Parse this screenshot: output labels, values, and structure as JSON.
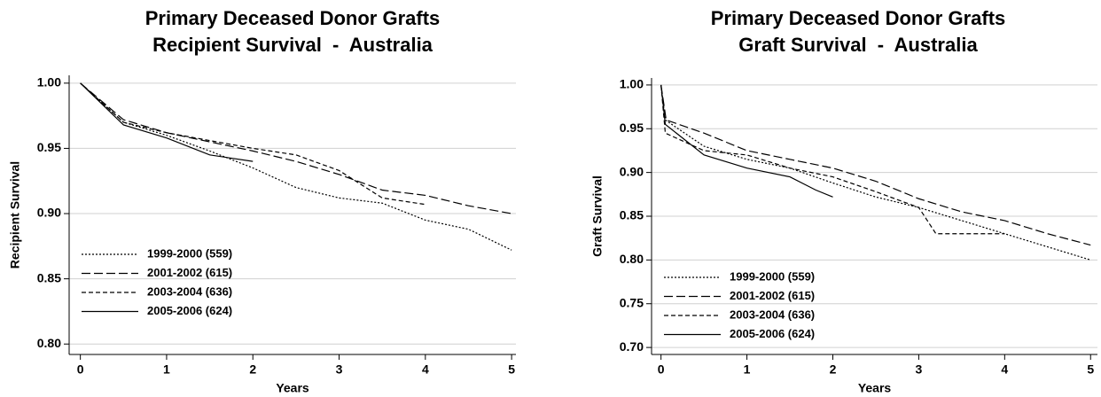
{
  "chart_data": [
    {
      "type": "line",
      "title": [
        "Primary Deceased Donor Grafts",
        "Recipient Survival  -  Australia"
      ],
      "x_label": "Years",
      "y_label": "Recipient Survival",
      "xlim": [
        -0.13,
        5.05
      ],
      "xticks": [
        0,
        1,
        2,
        3,
        4,
        5
      ],
      "ylim": [
        0.792,
        1.006
      ],
      "yticks": [
        {
          "value": 0.8,
          "label": "0.80"
        },
        0.85,
        {
          "value": 0.9,
          "label": "0.90"
        },
        0.95,
        {
          "value": 1,
          "label": "1.00"
        }
      ],
      "grid": true,
      "legend": "lower left",
      "series": [
        {
          "name": "1999-2000 (559)",
          "color": "#000000",
          "dash": "2,2",
          "x": [
            0,
            0.5,
            1,
            1.5,
            2,
            2.5,
            3,
            3.5,
            4,
            4.5,
            5
          ],
          "values": [
            1.0,
            0.97,
            0.96,
            0.948,
            0.935,
            0.92,
            0.912,
            0.908,
            0.895,
            0.888,
            0.872
          ]
        },
        {
          "name": "2001-2002 (615)",
          "color": "#000000",
          "dash": "10,4",
          "x": [
            0,
            0.5,
            1,
            1.5,
            2,
            2.5,
            3,
            3.5,
            4,
            4.5,
            5
          ],
          "values": [
            1.0,
            0.972,
            0.962,
            0.955,
            0.948,
            0.94,
            0.93,
            0.918,
            0.914,
            0.906,
            0.9
          ]
        },
        {
          "name": "2003-2004 (636)",
          "color": "#000000",
          "dash": "5,3",
          "x": [
            0,
            0.5,
            1,
            1.5,
            2,
            2.5,
            3,
            3.5,
            4
          ],
          "values": [
            1.0,
            0.97,
            0.962,
            0.956,
            0.95,
            0.945,
            0.933,
            0.912,
            0.907
          ]
        },
        {
          "name": "2005-2006 (624)",
          "color": "#000000",
          "dash": "none",
          "x": [
            0,
            0.5,
            1,
            1.5,
            2
          ],
          "values": [
            1.0,
            0.968,
            0.958,
            0.945,
            0.94
          ]
        }
      ]
    },
    {
      "type": "line",
      "title": [
        "Primary Deceased Donor Grafts",
        "Graft Survival  -  Australia"
      ],
      "x_label": "Years",
      "y_label": "Graft Survival",
      "xlim": [
        -0.11,
        5.08
      ],
      "xticks": [
        0,
        1,
        2,
        3,
        4,
        5
      ],
      "ylim": [
        0.692,
        1.008
      ],
      "yticks": [
        {
          "value": 0.7,
          "label": "0.70"
        },
        0.75,
        {
          "value": 0.8,
          "label": "0.80"
        },
        0.85,
        {
          "value": 0.9,
          "label": "0.90"
        },
        0.95,
        {
          "value": 1,
          "label": "1.00"
        }
      ],
      "grid": true,
      "legend": "lower left",
      "series": [
        {
          "name": "1999-2000 (559)",
          "color": "#000000",
          "dash": "2,2",
          "x": [
            0,
            0.05,
            0.5,
            1,
            1.5,
            2,
            2.5,
            3,
            3.5,
            4,
            4.5,
            5
          ],
          "values": [
            1.0,
            0.96,
            0.93,
            0.915,
            0.905,
            0.888,
            0.872,
            0.86,
            0.845,
            0.83,
            0.815,
            0.8
          ]
        },
        {
          "name": "2001-2002 (615)",
          "color": "#000000",
          "dash": "10,4",
          "x": [
            0,
            0.06,
            0.5,
            1,
            1.5,
            2,
            2.5,
            3,
            3.5,
            4,
            4.5,
            5
          ],
          "values": [
            1.0,
            0.96,
            0.945,
            0.925,
            0.915,
            0.905,
            0.89,
            0.87,
            0.855,
            0.845,
            0.83,
            0.817
          ]
        },
        {
          "name": "2003-2004 (636)",
          "color": "#000000",
          "dash": "5,3",
          "x": [
            0,
            0.05,
            0.5,
            1,
            1.5,
            2,
            2.5,
            3,
            3.2,
            4
          ],
          "values": [
            1.0,
            0.945,
            0.925,
            0.92,
            0.905,
            0.895,
            0.878,
            0.86,
            0.83,
            0.83
          ]
        },
        {
          "name": "2005-2006 (624)",
          "color": "#000000",
          "dash": "none",
          "x": [
            0,
            0.05,
            0.5,
            1,
            1.5,
            1.8,
            2
          ],
          "values": [
            1.0,
            0.955,
            0.92,
            0.905,
            0.895,
            0.88,
            0.872
          ]
        }
      ]
    }
  ]
}
